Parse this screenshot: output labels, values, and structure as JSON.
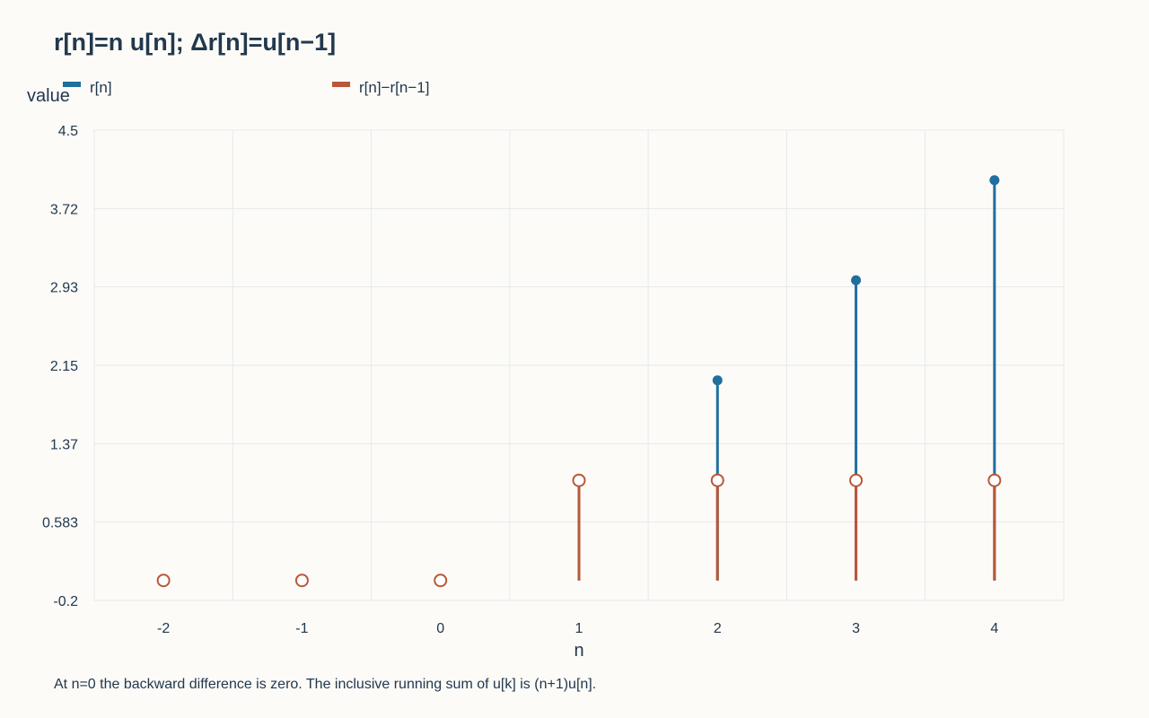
{
  "chart_data": {
    "type": "stem",
    "title": "r[n]=n u[n]; Δr[n]=u[n−1]",
    "xlabel": "n",
    "ylabel": "value",
    "x": [
      -2,
      -1,
      0,
      1,
      2,
      3,
      4
    ],
    "ylim": [
      -0.2,
      4.5
    ],
    "yticks": [
      "-0.2",
      "0.583",
      "1.37",
      "2.15",
      "2.93",
      "3.72",
      "4.5"
    ],
    "xticks": [
      "-2",
      "-1",
      "0",
      "1",
      "2",
      "3",
      "4"
    ],
    "grid": true,
    "legend_position": "top",
    "series": [
      {
        "name": "r[n]",
        "color": "#1f6f9f",
        "marker": "filled-circle",
        "values": [
          0,
          0,
          0,
          1,
          2,
          3,
          4
        ]
      },
      {
        "name": "r[n]−r[n−1]",
        "color": "#b9573a",
        "marker": "hollow-circle",
        "values": [
          0,
          0,
          0,
          1,
          1,
          1,
          1
        ]
      }
    ],
    "caption": "At n=0 the backward difference is zero. The inclusive running sum of u[k] is (n+1)u[n]."
  }
}
